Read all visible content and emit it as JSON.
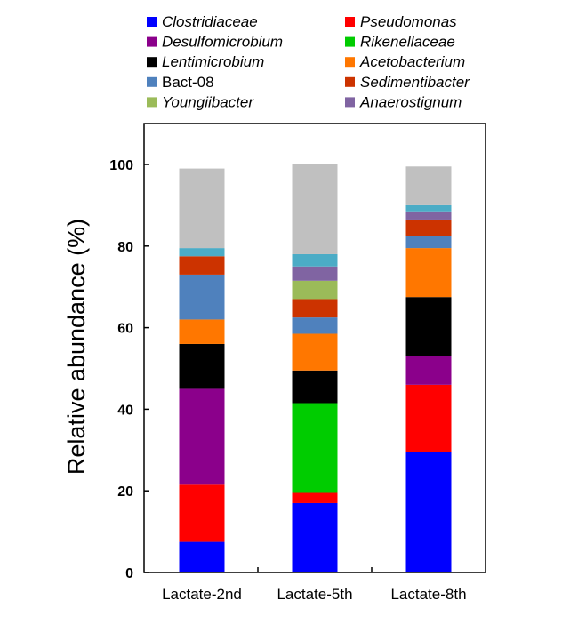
{
  "chart_data": {
    "type": "bar",
    "stacked": true,
    "categories": [
      "Lactate-2nd",
      "Lactate-5th",
      "Lactate-8th"
    ],
    "ylabel": "Relative abundance (%)",
    "xlabel": "",
    "ylim": [
      0,
      100
    ],
    "yticks": [
      0,
      20,
      40,
      60,
      80,
      100
    ],
    "grid": false,
    "legend_position": "top",
    "series": [
      {
        "name": "Clostridiaceae",
        "italic": true,
        "color": "#0000ff",
        "values": [
          7.5,
          17.0,
          29.5
        ]
      },
      {
        "name": "Pseudomonas",
        "italic": true,
        "color": "#ff0000",
        "values": [
          14.0,
          2.5,
          16.5
        ]
      },
      {
        "name": "Desulfomicrobium",
        "italic": true,
        "color": "#8b008b",
        "values": [
          23.5,
          0,
          7.0
        ]
      },
      {
        "name": "Rikenellaceae",
        "italic": true,
        "color": "#00cc00",
        "values": [
          0,
          22.0,
          0
        ]
      },
      {
        "name": "Lentimicrobium",
        "italic": true,
        "color": "#000000",
        "values": [
          11.0,
          8.0,
          14.5
        ]
      },
      {
        "name": "Acetobacterium",
        "italic": true,
        "color": "#ff7700",
        "values": [
          6.0,
          9.0,
          12.0
        ]
      },
      {
        "name": "Bact-08",
        "italic": false,
        "color": "#4f81bd",
        "values": [
          11.0,
          4.0,
          3.0
        ]
      },
      {
        "name": "Sedimentibacter",
        "italic": true,
        "color": "#cc3300",
        "values": [
          4.5,
          4.5,
          4.0
        ]
      },
      {
        "name": "Youngiibacter",
        "italic": true,
        "color": "#9bbb59",
        "values": [
          0,
          4.5,
          0
        ]
      },
      {
        "name": "Anaerostignum",
        "italic": true,
        "color": "#8064a2",
        "values": [
          0,
          3.5,
          2.0
        ]
      },
      {
        "name": "",
        "italic": false,
        "color": "#4bacc6",
        "values": [
          2.0,
          3.0,
          1.5
        ]
      },
      {
        "name": "",
        "italic": false,
        "color": "#c0c0c0",
        "values": [
          19.5,
          22.0,
          9.5
        ]
      }
    ]
  }
}
